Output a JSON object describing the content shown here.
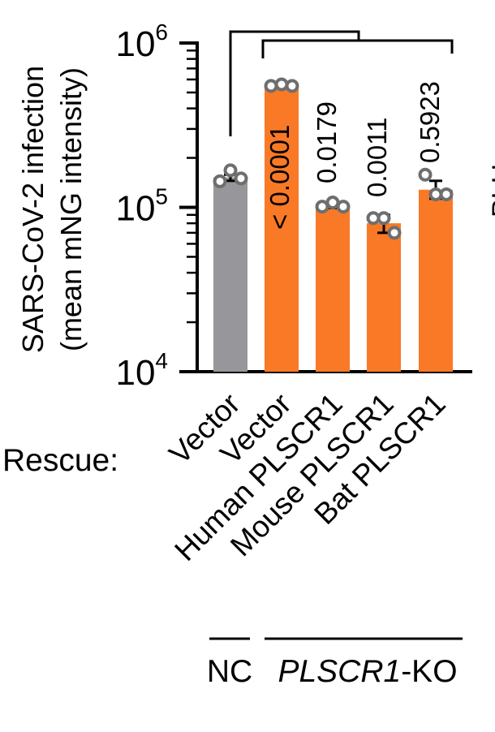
{
  "chart_data": {
    "type": "bar",
    "scale": "log",
    "ylim": [
      10000,
      1000000
    ],
    "ylabel_line1": "SARS-CoV-2 infection",
    "ylabel_line2": "(mean mNG intensity)",
    "yticks": [
      {
        "base": "10",
        "exp": "4",
        "value": 10000
      },
      {
        "base": "10",
        "exp": "5",
        "value": 100000
      },
      {
        "base": "10",
        "exp": "6",
        "value": 1000000
      }
    ],
    "rescue_label": "Rescue:",
    "categories": [
      "Vector",
      "Vector",
      "Human PLSCR1",
      "Mouse PLSCR1",
      "Bat PLSCR1"
    ],
    "values": [
      152000,
      540000,
      102000,
      80000,
      128000
    ],
    "errors": [
      [
        145000,
        158000
      ],
      [
        530000,
        555000
      ],
      [
        99000,
        105000
      ],
      [
        70000,
        90000
      ],
      [
        113000,
        145000
      ]
    ],
    "points": [
      [
        144000,
        168000,
        150000
      ],
      [
        548000,
        560000,
        548000
      ],
      [
        101000,
        107000,
        101000
      ],
      [
        86000,
        86000,
        70000
      ],
      [
        158000,
        120000,
        120000
      ]
    ],
    "colors": [
      "#96969b",
      "#f97927",
      "#f97927",
      "#f97927",
      "#f97927"
    ],
    "pvalues": [
      "< 0.0001",
      "0.0179",
      "0.0011",
      "0.5923"
    ],
    "groups": {
      "nc": "NC",
      "ko_gene": "PLSCR1",
      "ko_suffix": "-KO"
    },
    "right_edge_fragment": "PLH"
  }
}
